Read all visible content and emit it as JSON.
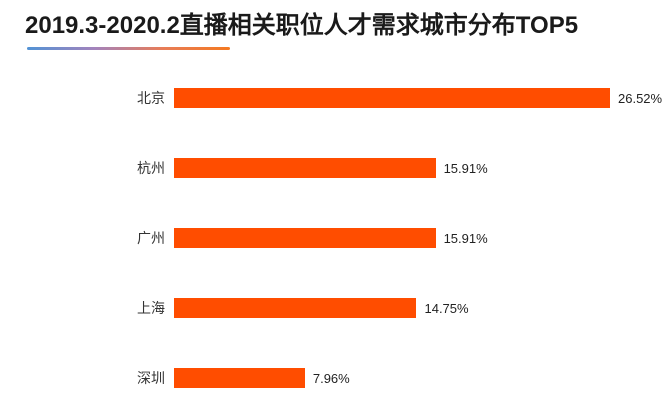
{
  "page": {
    "background": "#ffffff"
  },
  "header": {
    "title": "2019.3-2020.2直播相关职位人才需求城市分布TOP5",
    "underline_gradient": [
      "#5293D5",
      "#A383BC",
      "#E77C58",
      "#F47920"
    ]
  },
  "chart_data": {
    "type": "bar",
    "orientation": "horizontal",
    "title": "2019.3-2020.2直播相关职位人才需求城市分布TOP5",
    "categories": [
      "北京",
      "杭州",
      "广州",
      "上海",
      "深圳"
    ],
    "values": [
      26.52,
      15.91,
      15.91,
      14.75,
      7.96
    ],
    "value_labels": [
      "26.52%",
      "15.91%",
      "15.91%",
      "14.75%",
      "7.96%"
    ],
    "unit": "%",
    "bar_color": "#FF4D00",
    "xlim": [
      0,
      26.52
    ],
    "grid": false,
    "legend": false,
    "axis_visible": false
  }
}
